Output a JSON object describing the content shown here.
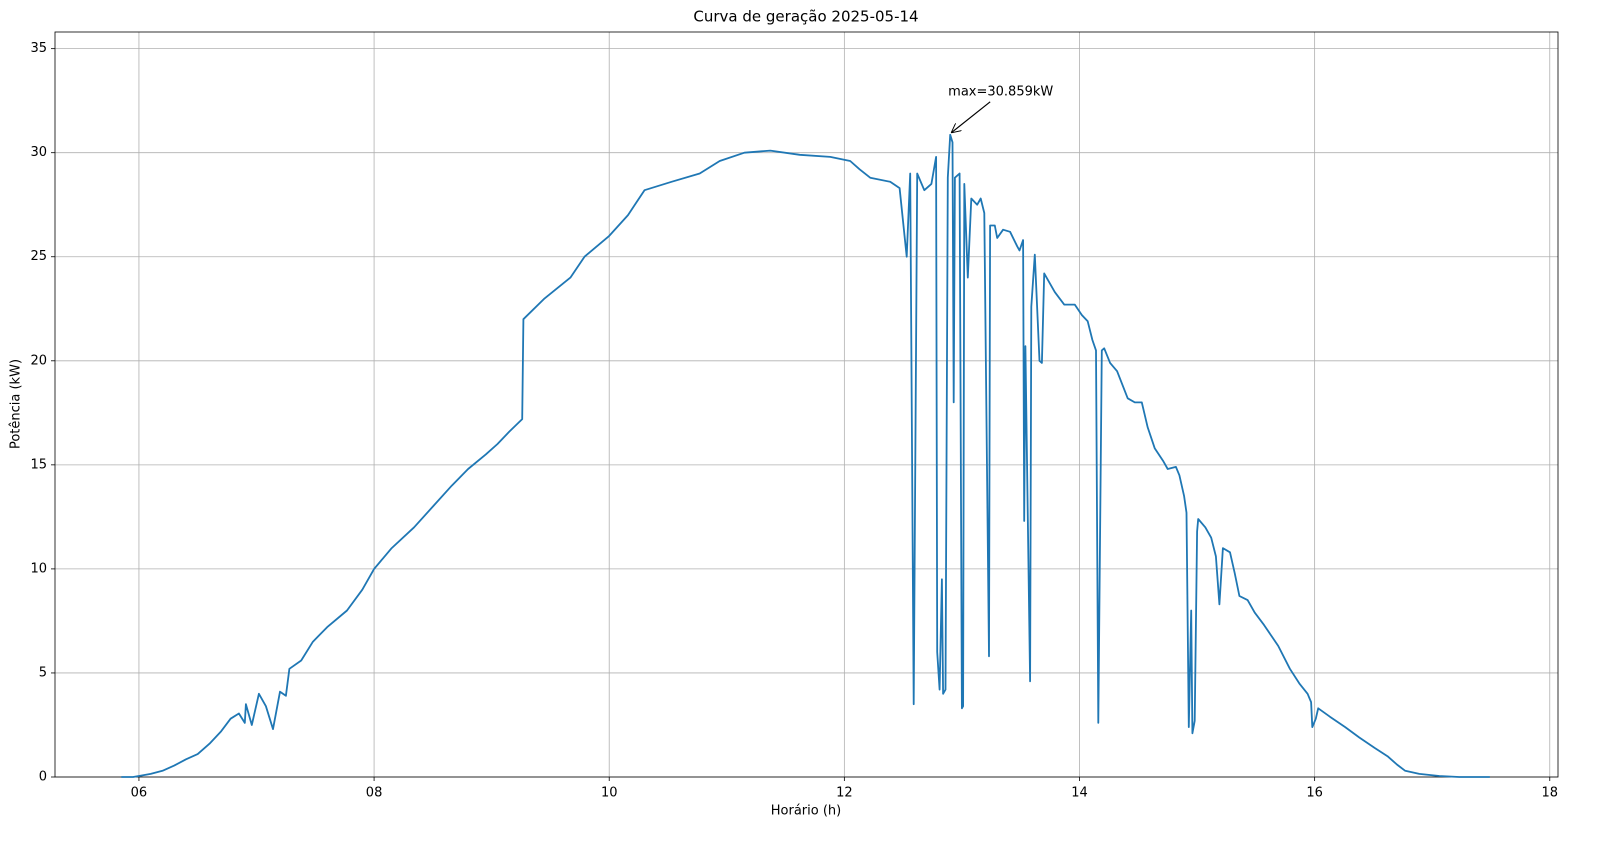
{
  "chart_data": {
    "type": "line",
    "title": "Curva de geração 2025-05-14",
    "x_label": "Horário (h)",
    "y_label": "Potência (kW)",
    "color": "#1f77b4",
    "grid": true,
    "xlim": [
      5.286,
      18.07
    ],
    "ylim": [
      0,
      35.8
    ],
    "xticks": [
      {
        "value": 6,
        "label": "06"
      },
      {
        "value": 8,
        "label": "08"
      },
      {
        "value": 10,
        "label": "10"
      },
      {
        "value": 12,
        "label": "12"
      },
      {
        "value": 14,
        "label": "14"
      },
      {
        "value": 16,
        "label": "16"
      },
      {
        "value": 18,
        "label": "18"
      }
    ],
    "yticks": [
      0,
      5,
      10,
      15,
      20,
      25,
      30,
      35
    ],
    "annotation": {
      "text": "max=30.859kW",
      "x": 12.9,
      "value": 30.859
    },
    "x": [
      5.85,
      5.95,
      6.0,
      6.1,
      6.2,
      6.3,
      6.4,
      6.5,
      6.6,
      6.7,
      6.78,
      6.85,
      6.9,
      6.91,
      6.96,
      7.02,
      7.08,
      7.14,
      7.2,
      7.25,
      7.28,
      7.38,
      7.48,
      7.6,
      7.77,
      7.9,
      8.0,
      8.15,
      8.34,
      8.5,
      8.66,
      8.8,
      8.95,
      9.05,
      9.15,
      9.26,
      9.27,
      9.45,
      9.67,
      9.79,
      10.0,
      10.16,
      10.3,
      10.53,
      10.77,
      10.94,
      11.15,
      11.37,
      11.62,
      11.88,
      12.05,
      12.13,
      12.22,
      12.39,
      12.47,
      12.53,
      12.56,
      12.59,
      12.62,
      12.68,
      12.74,
      12.78,
      12.79,
      12.81,
      12.83,
      12.84,
      12.86,
      12.88,
      12.9,
      12.92,
      12.93,
      12.94,
      12.98,
      13.0,
      13.01,
      13.02,
      13.05,
      13.08,
      13.13,
      13.16,
      13.19,
      13.23,
      13.24,
      13.28,
      13.3,
      13.35,
      13.41,
      13.47,
      13.49,
      13.52,
      13.53,
      13.54,
      13.58,
      13.59,
      13.62,
      13.66,
      13.68,
      13.7,
      13.79,
      13.87,
      13.96,
      14.02,
      14.07,
      14.11,
      14.14,
      14.16,
      14.19,
      14.21,
      14.26,
      14.32,
      14.41,
      14.47,
      14.53,
      14.58,
      14.64,
      14.71,
      14.75,
      14.82,
      14.85,
      14.89,
      14.91,
      14.93,
      14.95,
      14.96,
      14.98,
      15.0,
      15.01,
      15.07,
      15.12,
      15.16,
      15.19,
      15.22,
      15.28,
      15.32,
      15.36,
      15.43,
      15.49,
      15.57,
      15.69,
      15.79,
      15.87,
      15.94,
      15.97,
      15.98,
      16.01,
      16.03,
      16.13,
      16.26,
      16.38,
      16.51,
      16.62,
      16.7,
      16.77,
      16.89,
      17.06,
      17.23,
      17.49
    ],
    "values": [
      0,
      0,
      0.05,
      0.15,
      0.3,
      0.55,
      0.85,
      1.1,
      1.6,
      2.2,
      2.8,
      3.05,
      2.6,
      3.5,
      2.5,
      4.0,
      3.4,
      2.3,
      4.1,
      3.9,
      5.2,
      5.6,
      6.5,
      7.2,
      8.0,
      9.0,
      10.0,
      11.0,
      12.0,
      13.0,
      14.0,
      14.8,
      15.5,
      16.0,
      16.6,
      17.2,
      22.0,
      23.0,
      24.0,
      25.0,
      26.0,
      27.0,
      28.2,
      28.6,
      29.0,
      29.6,
      30.0,
      30.1,
      29.9,
      29.8,
      29.6,
      29.2,
      28.8,
      28.6,
      28.3,
      25.0,
      29.0,
      3.5,
      29.0,
      28.2,
      28.5,
      29.8,
      6.0,
      4.2,
      9.5,
      4.0,
      4.2,
      28.8,
      30.859,
      30.5,
      18.0,
      28.8,
      29.0,
      3.3,
      3.4,
      28.5,
      24.0,
      27.8,
      27.5,
      27.8,
      27.1,
      5.8,
      26.5,
      26.5,
      25.9,
      26.3,
      26.2,
      25.5,
      25.3,
      25.8,
      12.3,
      20.7,
      4.6,
      22.6,
      25.1,
      20.0,
      19.9,
      24.2,
      23.3,
      22.7,
      22.7,
      22.2,
      21.9,
      21.0,
      20.5,
      2.6,
      20.5,
      20.6,
      19.9,
      19.5,
      18.2,
      18.0,
      18.0,
      16.8,
      15.8,
      15.2,
      14.8,
      14.9,
      14.5,
      13.5,
      12.7,
      2.4,
      8.0,
      2.1,
      2.7,
      11.8,
      12.4,
      12.0,
      11.5,
      10.6,
      8.3,
      11.0,
      10.8,
      9.8,
      8.7,
      8.5,
      7.9,
      7.3,
      6.3,
      5.2,
      4.5,
      4.0,
      3.6,
      2.4,
      2.8,
      3.3,
      2.9,
      2.4,
      1.9,
      1.4,
      1.0,
      0.6,
      0.3,
      0.15,
      0.05,
      0,
      0
    ]
  }
}
